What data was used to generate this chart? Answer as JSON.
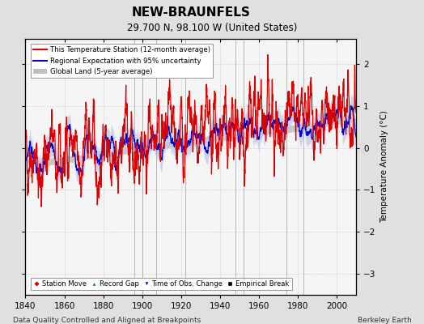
{
  "title": "NEW-BRAUNFELS",
  "subtitle": "29.700 N, 98.100 W (United States)",
  "xlabel_note": "Data Quality Controlled and Aligned at Breakpoints",
  "credit": "Berkeley Earth",
  "xlim": [
    1840,
    2010
  ],
  "ylim": [
    -3.5,
    2.6
  ],
  "yticks": [
    -3,
    -2,
    -1,
    0,
    1,
    2
  ],
  "xticks": [
    1840,
    1860,
    1880,
    1900,
    1920,
    1940,
    1960,
    1980,
    2000
  ],
  "ylabel": "Temperature Anomaly (°C)",
  "bg_color": "#e0e0e0",
  "plot_bg_color": "#f5f5f5",
  "station_line_color": "#dd0000",
  "regional_line_color": "#0000cc",
  "regional_fill_color": "#c0c8ee",
  "global_fill_color": "#c0c0c0",
  "seed": 42,
  "start_year": 1840,
  "end_year": 2010,
  "empirical_breaks": [
    1896,
    1900,
    1907,
    1922,
    1948,
    1952,
    1974,
    1983
  ],
  "record_gaps": [
    1892
  ],
  "time_of_obs_changes": [],
  "station_moves": []
}
